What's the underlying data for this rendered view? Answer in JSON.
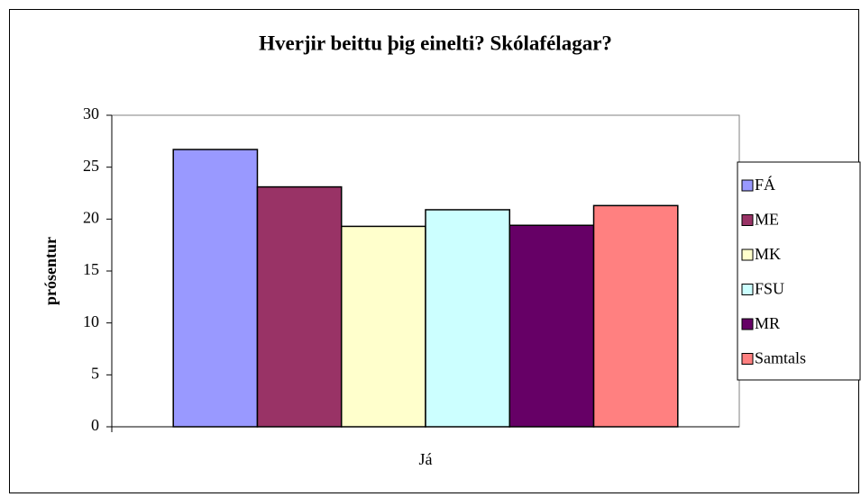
{
  "chart_data": {
    "type": "bar",
    "title": "Hverjir beittu þig einelti?  Skólafélagar?",
    "ylabel": "prósentur",
    "categories": [
      "Já"
    ],
    "series": [
      {
        "name": "FÁ",
        "color": "#9999ff",
        "values": [
          26.7
        ]
      },
      {
        "name": "ME",
        "color": "#993366",
        "values": [
          23.1
        ]
      },
      {
        "name": "MK",
        "color": "#ffffcc",
        "values": [
          19.3
        ]
      },
      {
        "name": "FSU",
        "color": "#ccffff",
        "values": [
          20.9
        ]
      },
      {
        "name": "MR",
        "color": "#660066",
        "values": [
          19.4
        ]
      },
      {
        "name": "Samtals",
        "color": "#ff8080",
        "values": [
          21.3
        ]
      }
    ],
    "ylim": [
      0,
      30
    ],
    "yticks": [
      0,
      5,
      10,
      15,
      20,
      25,
      30
    ],
    "grid": false,
    "legend": "right"
  }
}
